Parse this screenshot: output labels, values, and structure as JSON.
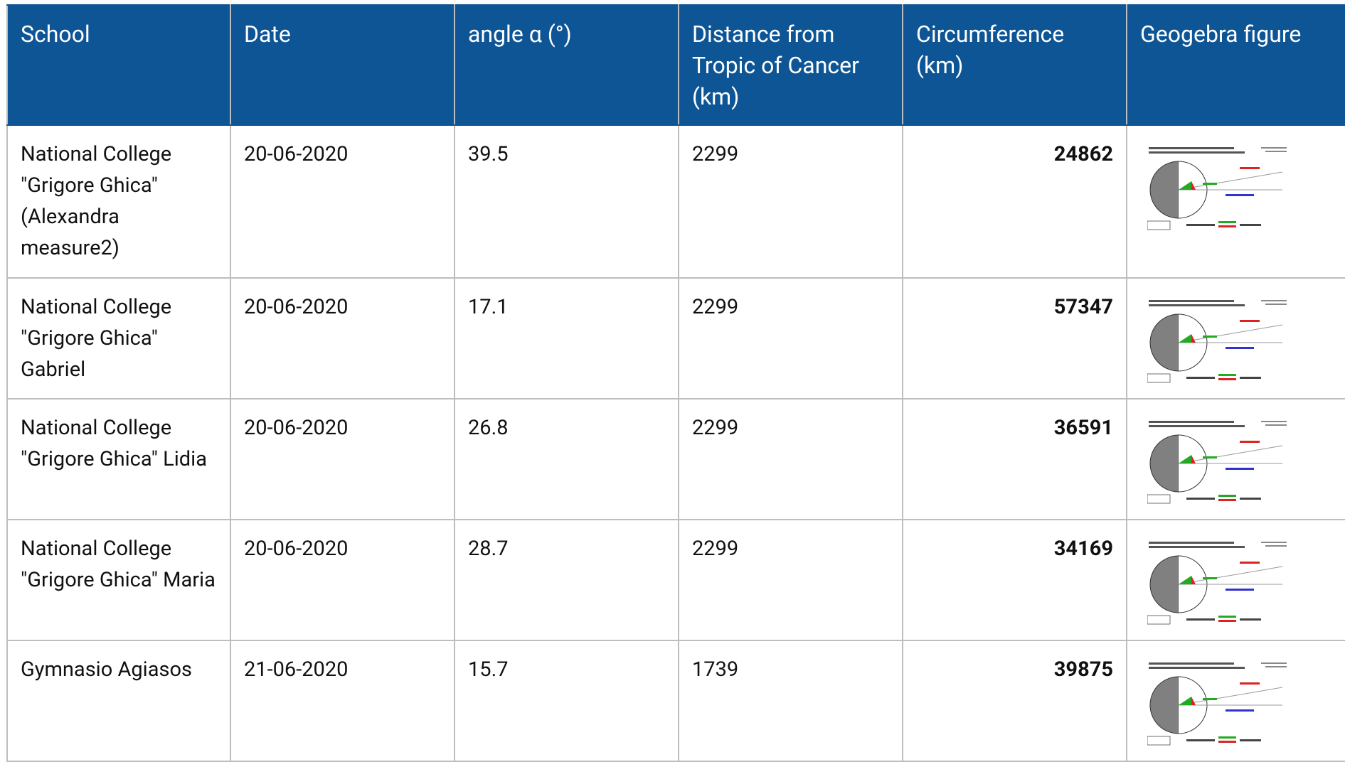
{
  "table": {
    "columns": [
      "School",
      "Date",
      "angle α (°)",
      "Distance from Tropic of Cancer (km)",
      "Circumference (km)",
      "Geogebra figure"
    ],
    "rows": [
      [
        "National College \"Grigore Ghica\" (Alexandra measure2)",
        "20-06-2020",
        "39.5",
        "2299",
        "24862"
      ],
      [
        "National College \"Grigore Ghica\" Gabriel",
        "20-06-2020",
        "17.1",
        "2299",
        "57347"
      ],
      [
        "National College \"Grigore Ghica\" Lidia",
        "20-06-2020",
        "26.8",
        "2299",
        "36591"
      ],
      [
        "National College \"Grigore Ghica\" Maria",
        "20-06-2020",
        "28.7",
        "2299",
        "34169"
      ],
      [
        "Gymnasio Agiasos",
        "21-06-2020",
        "15.7",
        "1739",
        "39875"
      ]
    ]
  }
}
